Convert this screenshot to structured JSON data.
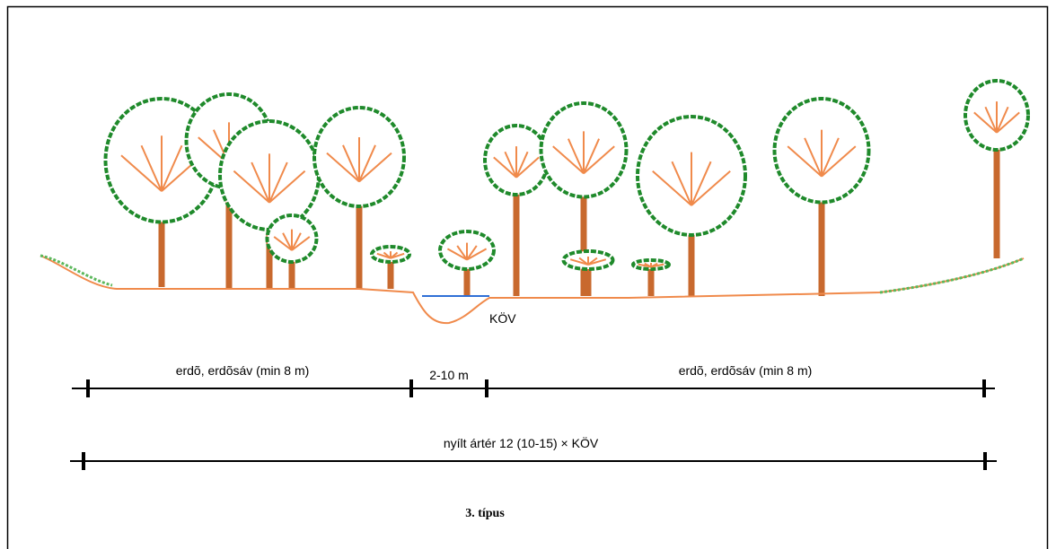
{
  "labels": {
    "water_level": "KÖV",
    "segments": [
      "erdõ, erdõsáv (min 8 m)",
      "2-10 m",
      "erdõ, erdõsáv (min 8 m)"
    ],
    "total": "nyílt ártér 12 (10-15) × KÖV",
    "caption": "3. típus"
  }
}
